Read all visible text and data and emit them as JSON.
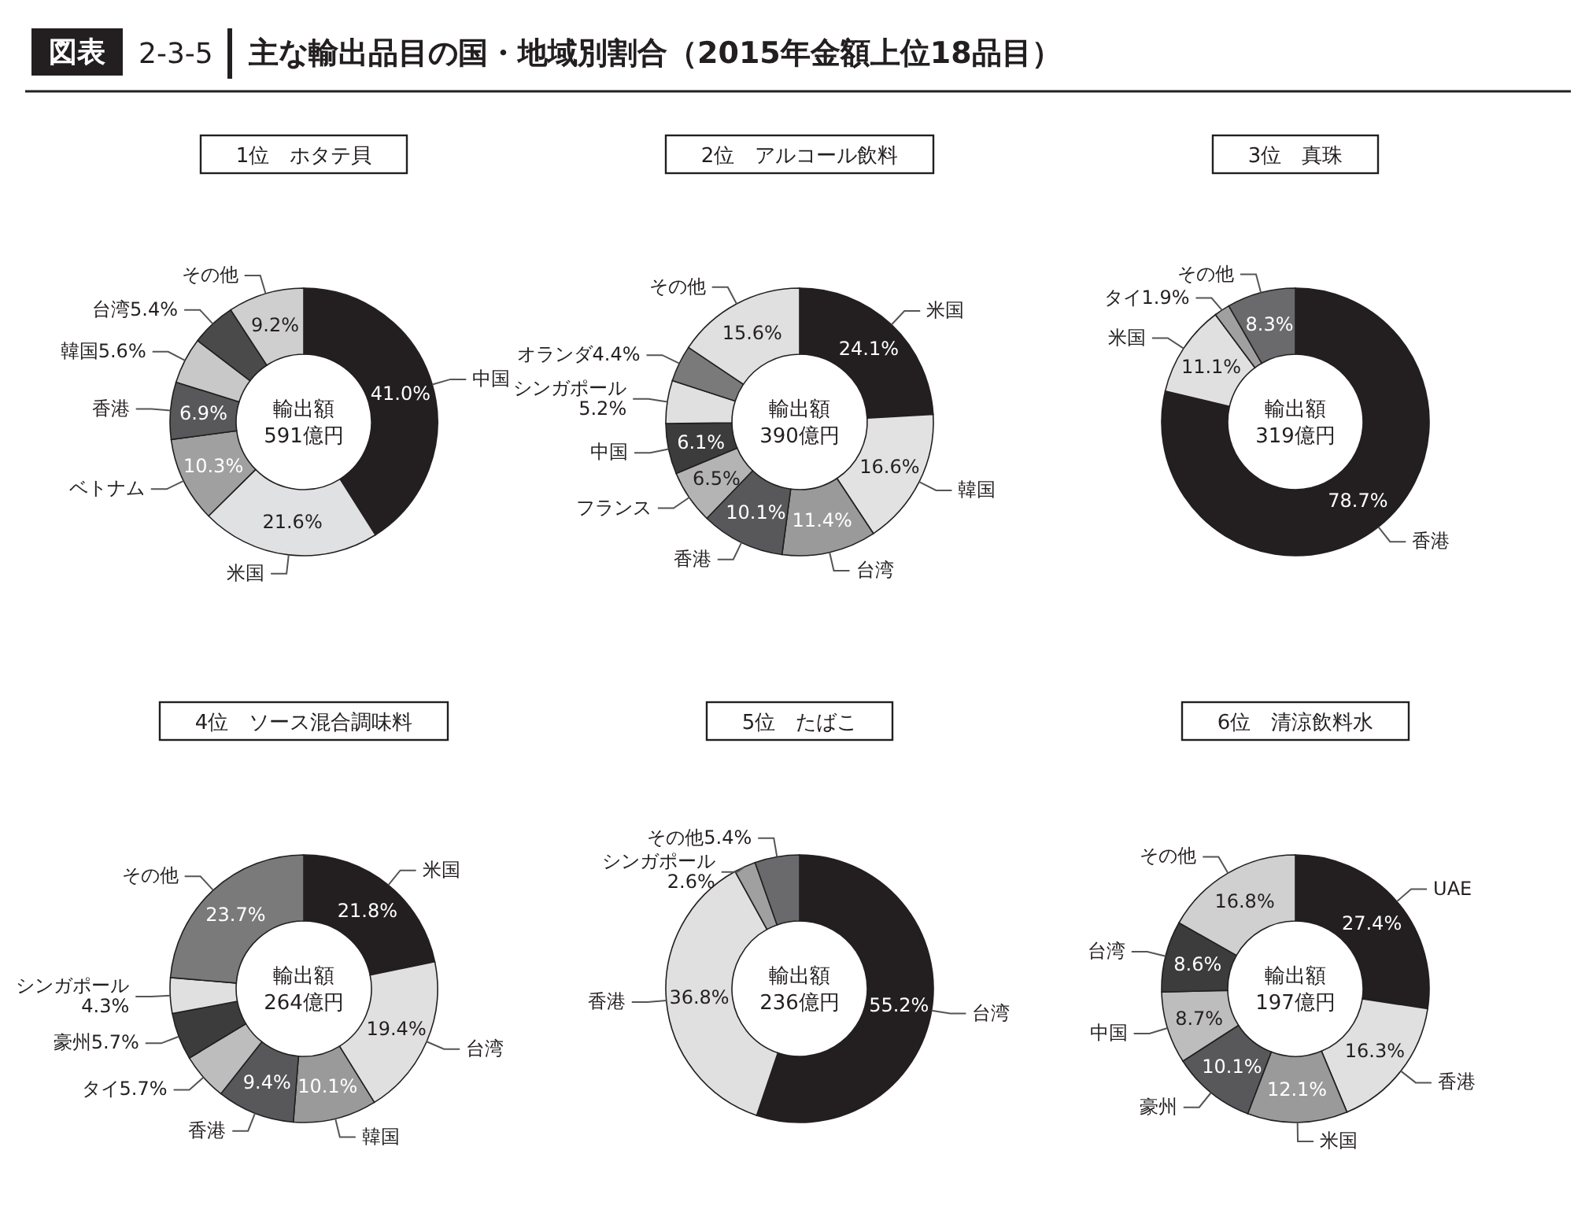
{
  "chart_data": [
    {
      "type": "other",
      "title": "主な輸出品目の国・地域別割合（2015年金額上位18品目）",
      "annotations": [
        "図表",
        "2-3-5"
      ]
    },
    {
      "type": "donut",
      "title": "1位　ホタテ貝",
      "annotations": [
        "輸出額",
        "591億円"
      ],
      "categories": [
        "中国",
        "米国",
        "ベトナム",
        "香港",
        "韓国",
        "台湾",
        "その他"
      ],
      "values": [
        41.0,
        21.6,
        10.3,
        6.9,
        5.6,
        5.4,
        9.2
      ],
      "value_labels": [
        "41.0%",
        "21.6%",
        "10.3%",
        "6.9%",
        "5.6%",
        "5.4%",
        "9.2%"
      ],
      "colors": [
        "#231f20",
        "#e0e1e2",
        "#a0a0a0",
        "#58585a",
        "#c8c8c8",
        "#4a4a4a",
        "#cfcfcf"
      ]
    },
    {
      "type": "donut",
      "title": "2位　アルコール飲料",
      "annotations": [
        "輸出額",
        "390億円"
      ],
      "categories": [
        "米国",
        "韓国",
        "台湾",
        "香港",
        "フランス",
        "中国",
        "シンガポール",
        "オランダ",
        "その他"
      ],
      "values": [
        24.1,
        16.6,
        11.4,
        10.1,
        6.5,
        6.1,
        5.2,
        4.4,
        15.6
      ],
      "value_labels": [
        "24.1%",
        "16.6%",
        "11.4%",
        "10.1%",
        "6.5%",
        "6.1%",
        "5.2%",
        "4.4%",
        "15.6%"
      ],
      "colors": [
        "#231f20",
        "#e2e2e2",
        "#9a9a9a",
        "#58585a",
        "#b4b4b4",
        "#3c3c3c",
        "#e0e0e0",
        "#7a7a7a",
        "#e0e0e0"
      ]
    },
    {
      "type": "donut",
      "title": "3位　真珠",
      "annotations": [
        "輸出額",
        "319億円"
      ],
      "categories": [
        "香港",
        "米国",
        "タイ",
        "その他"
      ],
      "values": [
        78.7,
        11.1,
        1.9,
        8.3
      ],
      "value_labels": [
        "78.7%",
        "11.1%",
        "1.9%",
        "8.3%"
      ],
      "colors": [
        "#231f20",
        "#e0e0e0",
        "#a0a0a0",
        "#6a6a6c"
      ]
    },
    {
      "type": "donut",
      "title": "4位　ソース混合調味料",
      "annotations": [
        "輸出額",
        "264億円"
      ],
      "categories": [
        "米国",
        "台湾",
        "韓国",
        "香港",
        "タイ",
        "豪州",
        "シンガポール",
        "その他"
      ],
      "values": [
        21.8,
        19.4,
        10.1,
        9.4,
        5.7,
        5.7,
        4.3,
        23.7
      ],
      "value_labels": [
        "21.8%",
        "19.4%",
        "10.1%",
        "9.4%",
        "5.7%",
        "5.7%",
        "4.3%",
        "23.7%"
      ],
      "colors": [
        "#231f20",
        "#e0e0e0",
        "#9a9a9a",
        "#58585a",
        "#bdbdbd",
        "#3c3c3c",
        "#e0e0e0",
        "#7a7a7a"
      ]
    },
    {
      "type": "donut",
      "title": "5位　たばこ",
      "annotations": [
        "輸出額",
        "236億円"
      ],
      "categories": [
        "台湾",
        "香港",
        "シンガポール",
        "その他"
      ],
      "values": [
        55.2,
        36.8,
        2.6,
        5.4
      ],
      "value_labels": [
        "55.2%",
        "36.8%",
        "2.6%",
        "5.4%"
      ],
      "colors": [
        "#231f20",
        "#e0e0e0",
        "#a0a0a0",
        "#6a6a6c"
      ]
    },
    {
      "type": "donut",
      "title": "6位　清涼飲料水",
      "annotations": [
        "輸出額",
        "197億円"
      ],
      "categories": [
        "UAE",
        "香港",
        "米国",
        "豪州",
        "中国",
        "台湾",
        "その他"
      ],
      "values": [
        27.4,
        16.3,
        12.1,
        10.1,
        8.7,
        8.6,
        16.8
      ],
      "value_labels": [
        "27.4%",
        "16.3%",
        "12.1%",
        "10.1%",
        "8.7%",
        "8.6%",
        "16.8%"
      ],
      "colors": [
        "#231f20",
        "#e0e0e0",
        "#9a9a9a",
        "#58585a",
        "#bdbdbd",
        "#3c3c3c",
        "#d0d0d0"
      ]
    }
  ]
}
